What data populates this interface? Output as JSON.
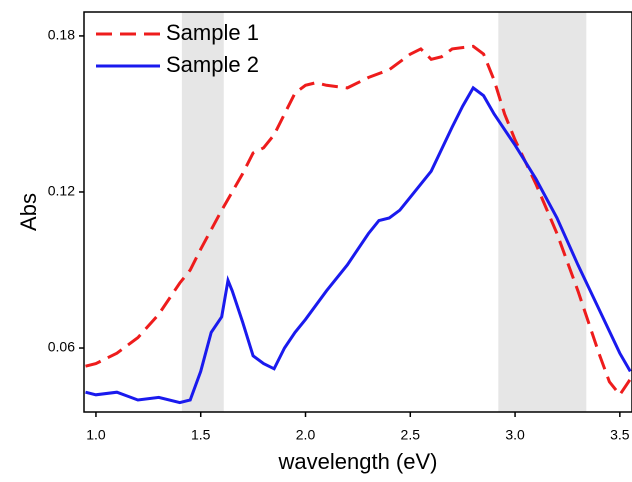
{
  "chart_data": {
    "type": "line",
    "xlabel": "wavelength (eV)",
    "ylabel": "Abs",
    "xlim": [
      0.943,
      3.558
    ],
    "ylim": [
      0.0354,
      0.1892
    ],
    "xticks": [
      {
        "value": 1.0,
        "label": "1.0"
      },
      1.5,
      {
        "value": 2.0,
        "label": "2.0"
      },
      2.5,
      {
        "value": 3.0,
        "label": "3.0"
      },
      3.5
    ],
    "yticks": [
      0.06,
      0.12,
      0.18
    ],
    "shaded_regions": [
      [
        1.41,
        1.61
      ],
      [
        2.92,
        3.34
      ]
    ],
    "legend": "upper-left",
    "series": [
      {
        "name": "Sample 1",
        "color": "#ee1c1c",
        "dash": true,
        "x": [
          0.95,
          1.0,
          1.1,
          1.2,
          1.3,
          1.4,
          1.45,
          1.5,
          1.6,
          1.7,
          1.75,
          1.8,
          1.85,
          1.9,
          1.95,
          2.0,
          2.05,
          2.1,
          2.2,
          2.3,
          2.4,
          2.5,
          2.55,
          2.6,
          2.65,
          2.7,
          2.8,
          2.85,
          2.9,
          2.95,
          3.0,
          3.1,
          3.2,
          3.3,
          3.4,
          3.45,
          3.5,
          3.55
        ],
        "values": [
          0.053,
          0.054,
          0.058,
          0.064,
          0.073,
          0.085,
          0.09,
          0.098,
          0.113,
          0.127,
          0.135,
          0.137,
          0.142,
          0.15,
          0.158,
          0.161,
          0.162,
          0.161,
          0.16,
          0.164,
          0.167,
          0.173,
          0.175,
          0.171,
          0.172,
          0.175,
          0.176,
          0.173,
          0.163,
          0.15,
          0.14,
          0.123,
          0.104,
          0.082,
          0.058,
          0.047,
          0.042,
          0.048
        ]
      },
      {
        "name": "Sample 2",
        "color": "#1a1aee",
        "dash": false,
        "x": [
          0.95,
          1.0,
          1.1,
          1.2,
          1.3,
          1.4,
          1.45,
          1.5,
          1.55,
          1.6,
          1.63,
          1.65,
          1.7,
          1.75,
          1.8,
          1.85,
          1.9,
          1.95,
          2.0,
          2.1,
          2.2,
          2.3,
          2.35,
          2.4,
          2.45,
          2.5,
          2.6,
          2.7,
          2.75,
          2.8,
          2.85,
          2.9,
          3.0,
          3.1,
          3.2,
          3.3,
          3.4,
          3.5,
          3.55
        ],
        "values": [
          0.043,
          0.042,
          0.043,
          0.04,
          0.041,
          0.039,
          0.04,
          0.051,
          0.066,
          0.072,
          0.086,
          0.082,
          0.07,
          0.057,
          0.054,
          0.052,
          0.06,
          0.066,
          0.071,
          0.082,
          0.092,
          0.104,
          0.109,
          0.11,
          0.113,
          0.118,
          0.128,
          0.145,
          0.153,
          0.16,
          0.157,
          0.15,
          0.138,
          0.125,
          0.11,
          0.092,
          0.075,
          0.058,
          0.051
        ]
      }
    ]
  }
}
